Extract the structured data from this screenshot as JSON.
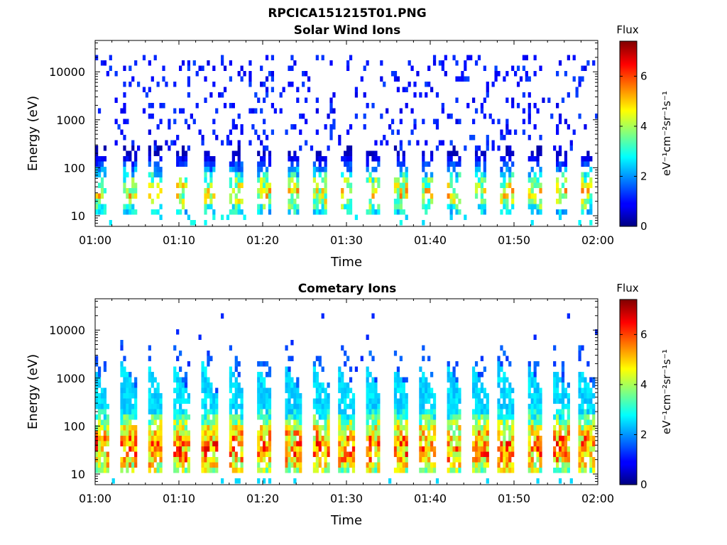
{
  "page": {
    "title": "RPCICA151215T01.PNG"
  },
  "chart_data": [
    {
      "type": "heatmap",
      "title": "Solar Wind Ions",
      "xlabel": "Time",
      "ylabel": "Energy (eV)",
      "x_range": [
        "01:00",
        "02:00"
      ],
      "x_ticks": [
        "01:00",
        "01:10",
        "01:20",
        "01:30",
        "01:40",
        "01:50",
        "02:00"
      ],
      "y_scale": "log",
      "y_range": [
        6,
        45000
      ],
      "y_ticks": [
        {
          "value": 10,
          "label": "10"
        },
        {
          "value": 100,
          "label": "100"
        },
        {
          "value": 1000,
          "label": "1000"
        },
        {
          "value": 10000,
          "label": "10000"
        }
      ],
      "colorbar": {
        "title": "Flux",
        "label": "eV⁻¹cm⁻²sr⁻¹s⁻¹",
        "range": [
          0,
          7.4
        ],
        "ticks": [
          "0",
          "2",
          "4",
          "6"
        ],
        "colormap": "jet"
      },
      "pulse_minutes": [
        0.6,
        4.1,
        7.2,
        10.3,
        13.7,
        16.8,
        20.2,
        23.6,
        26.9,
        30.0,
        33.2,
        36.5,
        39.6,
        42.8,
        46.0,
        49.1,
        52.5,
        55.6,
        58.6
      ],
      "pulse_peak_energy_eV": 30,
      "pulse_peak_flux": 5.5,
      "background_energy_range_eV": [
        300,
        20000
      ],
      "background_flux": 1.2
    },
    {
      "type": "heatmap",
      "title": "Cometary Ions",
      "xlabel": "Time",
      "ylabel": "Energy (eV)",
      "x_range": [
        "01:00",
        "02:00"
      ],
      "x_ticks": [
        "01:00",
        "01:10",
        "01:20",
        "01:30",
        "01:40",
        "01:50",
        "02:00"
      ],
      "y_scale": "log",
      "y_range": [
        6,
        45000
      ],
      "y_ticks": [
        {
          "value": 10,
          "label": "10"
        },
        {
          "value": 100,
          "label": "100"
        },
        {
          "value": 1000,
          "label": "1000"
        },
        {
          "value": 10000,
          "label": "10000"
        }
      ],
      "colorbar": {
        "title": "Flux",
        "label": "eV⁻¹cm⁻²sr⁻¹s⁻¹",
        "range": [
          0,
          7.4
        ],
        "ticks": [
          "0",
          "2",
          "4",
          "6"
        ],
        "colormap": "jet"
      },
      "pulse_minutes": [
        0.6,
        4.1,
        7.2,
        10.3,
        13.7,
        16.8,
        20.2,
        23.6,
        26.9,
        30.0,
        33.2,
        36.5,
        39.6,
        42.8,
        46.0,
        49.1,
        52.5,
        55.6,
        58.6
      ],
      "pulse_peak_energy_eV": 35,
      "pulse_peak_flux": 6.5,
      "pulse_top_energy_eV": 1000,
      "background_flux": 0
    }
  ]
}
